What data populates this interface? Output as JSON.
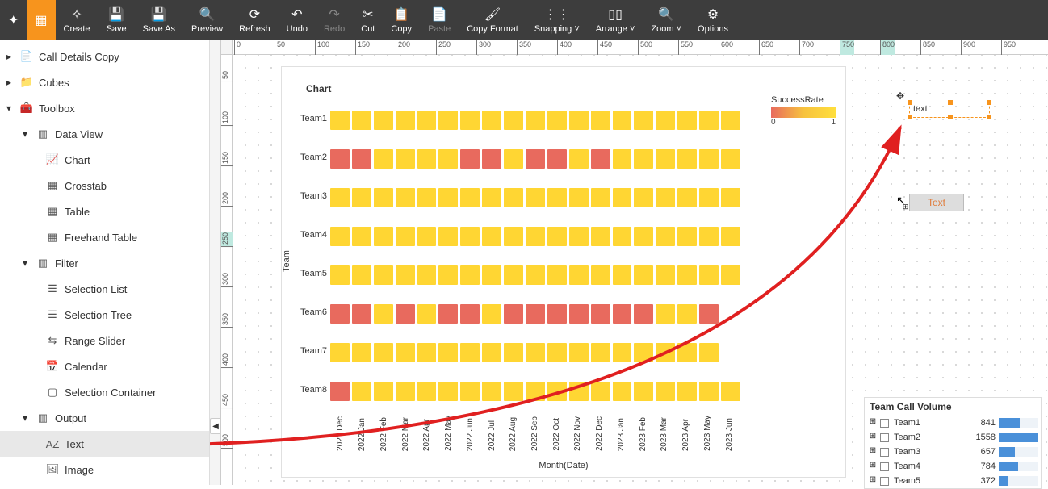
{
  "toolbar": {
    "create": "Create",
    "save": "Save",
    "saveas": "Save As",
    "preview": "Preview",
    "refresh": "Refresh",
    "undo": "Undo",
    "redo": "Redo",
    "cut": "Cut",
    "copy": "Copy",
    "paste": "Paste",
    "copyformat": "Copy Format",
    "snapping": "Snapping",
    "arrange": "Arrange",
    "zoom": "Zoom",
    "options": "Options"
  },
  "tree": {
    "call_details": "Call Details Copy",
    "cubes": "Cubes",
    "toolbox": "Toolbox",
    "data_view": "Data View",
    "chart": "Chart",
    "crosstab": "Crosstab",
    "table": "Table",
    "freehand": "Freehand Table",
    "filter": "Filter",
    "sel_list": "Selection List",
    "sel_tree": "Selection Tree",
    "range": "Range Slider",
    "calendar": "Calendar",
    "sel_cont": "Selection Container",
    "output": "Output",
    "text": "Text",
    "image": "Image"
  },
  "chart": {
    "title": "Chart",
    "legend_title": "SuccessRate",
    "legend_min": "0",
    "legend_max": "1",
    "ylabel": "Team",
    "xlabel": "Month(Date)",
    "teams": [
      "Team1",
      "Team2",
      "Team3",
      "Team4",
      "Team5",
      "Team6",
      "Team7",
      "Team8"
    ],
    "months": [
      "2021 Dec",
      "2022 Jan",
      "2022 Feb",
      "2022 Mar",
      "2022 Apr",
      "2022 May",
      "2022 Jun",
      "2022 Jul",
      "2022 Aug",
      "2022 Sep",
      "2022 Oct",
      "2022 Nov",
      "2022 Dec",
      "2023 Jan",
      "2023 Feb",
      "2023 Mar",
      "2023 Apr",
      "2023 May",
      "2023 Jun"
    ],
    "colors": {
      "low": "#e86a5e",
      "high": "#ffd633"
    },
    "grid": [
      [
        1,
        1,
        1,
        1,
        1,
        1,
        1,
        1,
        1,
        1,
        1,
        1,
        1,
        1,
        1,
        1,
        1,
        1,
        1
      ],
      [
        0,
        0,
        1,
        1,
        1,
        1,
        0,
        0,
        1,
        0,
        0,
        1,
        0,
        1,
        1,
        1,
        1,
        1,
        1
      ],
      [
        1,
        1,
        1,
        1,
        1,
        1,
        1,
        1,
        1,
        1,
        1,
        1,
        1,
        1,
        1,
        1,
        1,
        1,
        1
      ],
      [
        1,
        1,
        1,
        1,
        1,
        1,
        1,
        1,
        1,
        1,
        1,
        1,
        1,
        1,
        1,
        1,
        1,
        1,
        1
      ],
      [
        1,
        1,
        1,
        1,
        1,
        1,
        1,
        1,
        1,
        1,
        1,
        1,
        1,
        1,
        1,
        1,
        1,
        1,
        1
      ],
      [
        0,
        0,
        1,
        0,
        1,
        0,
        0,
        1,
        0,
        0,
        0,
        0,
        0,
        0,
        0,
        1,
        1,
        0,
        -1
      ],
      [
        1,
        1,
        1,
        1,
        1,
        1,
        1,
        1,
        1,
        1,
        1,
        1,
        1,
        1,
        1,
        1,
        1,
        1,
        -1
      ],
      [
        0,
        1,
        1,
        1,
        1,
        1,
        1,
        1,
        1,
        1,
        1,
        1,
        1,
        1,
        1,
        1,
        1,
        1,
        1
      ]
    ]
  },
  "selected_text": {
    "label": "text"
  },
  "drag_ghost": {
    "label": "Text"
  },
  "tcv": {
    "title": "Team Call Volume",
    "max": 1558,
    "rows": [
      {
        "name": "Team1",
        "val": 841
      },
      {
        "name": "Team2",
        "val": 1558
      },
      {
        "name": "Team3",
        "val": 657
      },
      {
        "name": "Team4",
        "val": 784
      },
      {
        "name": "Team5",
        "val": 372
      }
    ]
  },
  "ruler": {
    "h": [
      0,
      50,
      100,
      150,
      200,
      250,
      300,
      350,
      400,
      450,
      500,
      550,
      600,
      650,
      700,
      750,
      800,
      850,
      900,
      950
    ],
    "v": [
      50,
      100,
      150,
      200,
      250,
      300,
      350,
      400,
      450,
      500
    ]
  }
}
